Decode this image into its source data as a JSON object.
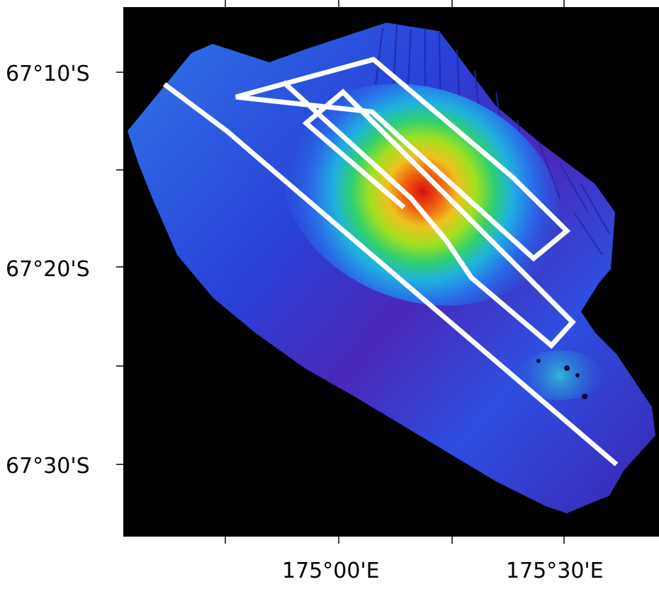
{
  "map": {
    "y_labels": [
      "67°10'S",
      "67°20'S",
      "67°30'S"
    ],
    "x_labels": [
      "175°00'E",
      "175°30'E"
    ],
    "colors": {
      "background": "#000000",
      "frame_outside": "#ffffff",
      "survey_track": "#ffffff",
      "bathymetry_scale": [
        "#1a0a9c",
        "#2a3fe0",
        "#1f7ff0",
        "#20c4e8",
        "#20e070",
        "#b8f020",
        "#f0c020",
        "#f06010",
        "#d01010"
      ]
    }
  }
}
